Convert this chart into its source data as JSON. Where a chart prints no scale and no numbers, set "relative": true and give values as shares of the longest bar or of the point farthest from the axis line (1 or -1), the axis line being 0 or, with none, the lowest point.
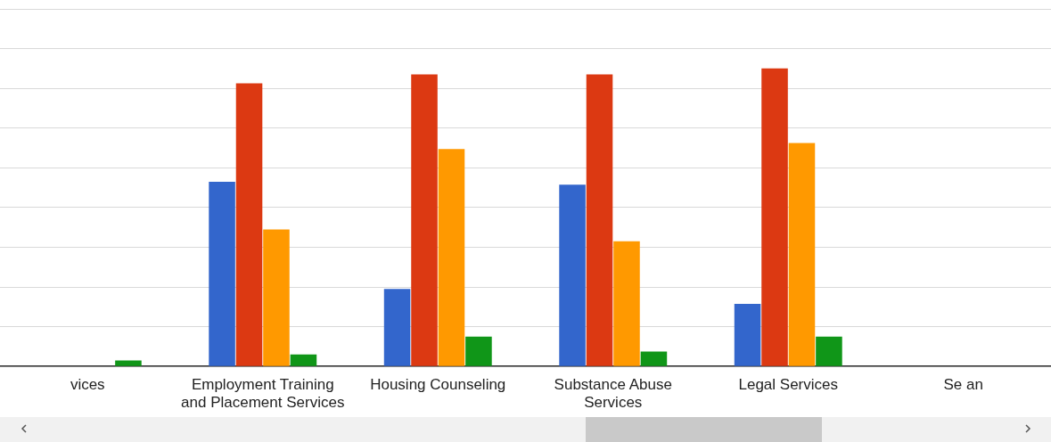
{
  "chart_data": {
    "type": "bar",
    "relative": true,
    "grid": "y",
    "categories": [
      "vices",
      "Employment Training and Placement Services",
      "Housing Counseling",
      "Substance Abuse Services",
      "Legal Services",
      "Se an"
    ],
    "series": [
      {
        "color": "#3366cc",
        "values": [
          null,
          0.62,
          0.26,
          0.61,
          0.21,
          null
        ]
      },
      {
        "color": "#dc3912",
        "values": [
          null,
          0.95,
          0.98,
          0.98,
          1,
          null
        ]
      },
      {
        "color": "#ff9900",
        "values": [
          null,
          0.46,
          0.73,
          0.42,
          0.75,
          null
        ]
      },
      {
        "color": "#109618",
        "values": [
          0.02,
          0.04,
          0.1,
          0.05,
          0.1,
          null
        ]
      }
    ]
  }
}
